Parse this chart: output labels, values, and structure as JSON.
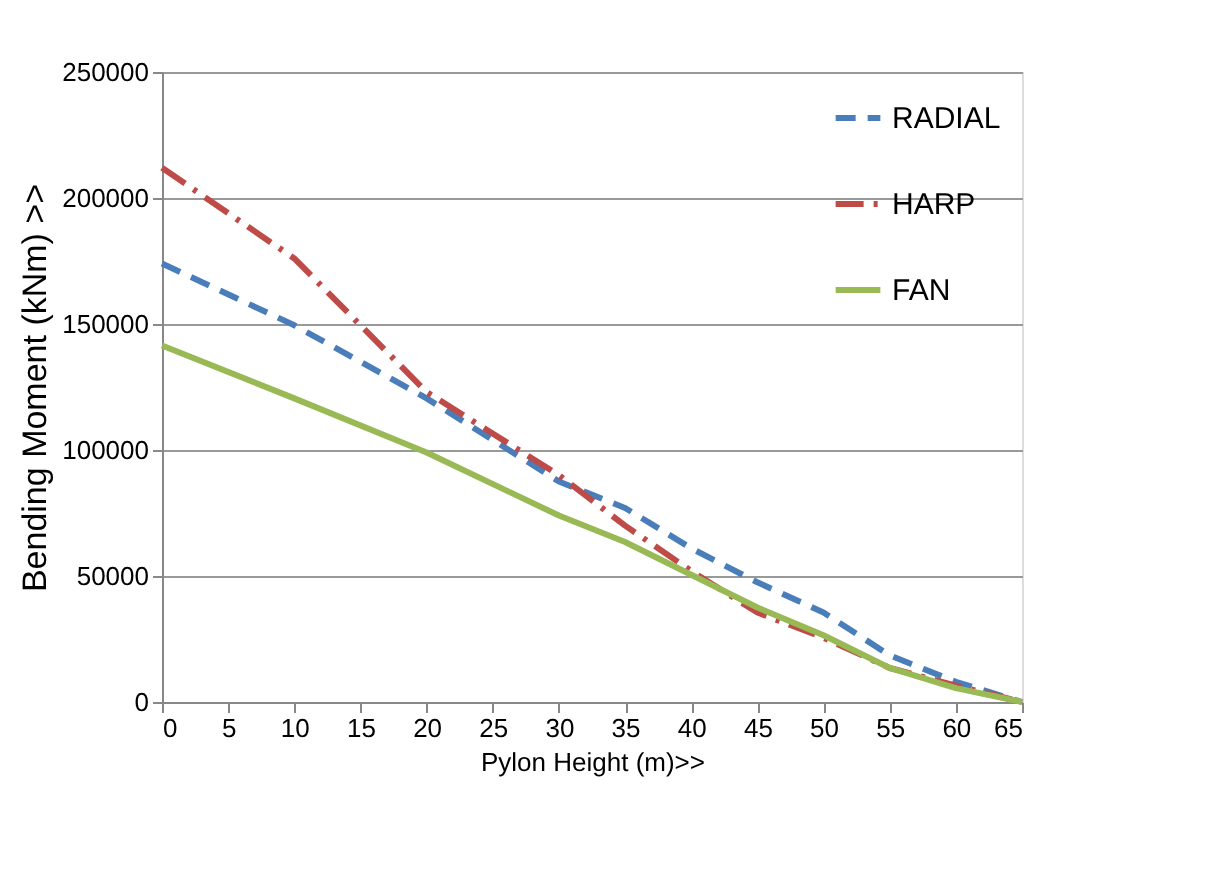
{
  "chart_data": {
    "type": "line",
    "xlabel": "Pylon Height (m)>>",
    "ylabel": "Bending Moment (kNm) >>",
    "x": [
      0,
      10,
      20,
      30,
      35,
      40,
      45,
      50,
      55,
      60,
      65
    ],
    "series": [
      {
        "name": "RADIAL",
        "color": "#4a7ebb",
        "line_style": "dashed",
        "values": [
          174000,
          149500,
          120500,
          87500,
          77000,
          61000,
          47500,
          35500,
          18500,
          8000,
          0
        ]
      },
      {
        "name": "HARP",
        "color": "#be4b48",
        "line_style": "dotted",
        "values": [
          212000,
          176000,
          123000,
          90000,
          70000,
          52000,
          35500,
          25500,
          13500,
          6500,
          0
        ]
      },
      {
        "name": "FAN",
        "color": "#98b954",
        "line_style": "solid",
        "values": [
          141500,
          120500,
          99000,
          74000,
          63500,
          50500,
          37500,
          26500,
          13500,
          5500,
          0
        ]
      }
    ],
    "xlim": [
      0,
      65
    ],
    "xticks": [
      0,
      5,
      10,
      15,
      20,
      25,
      30,
      35,
      40,
      45,
      50,
      55,
      60,
      65
    ],
    "ylim": [
      0,
      250000
    ],
    "yticks": [
      0,
      50000,
      100000,
      150000,
      200000,
      250000
    ],
    "grid": "y",
    "legend": "top right",
    "marker": "none"
  }
}
